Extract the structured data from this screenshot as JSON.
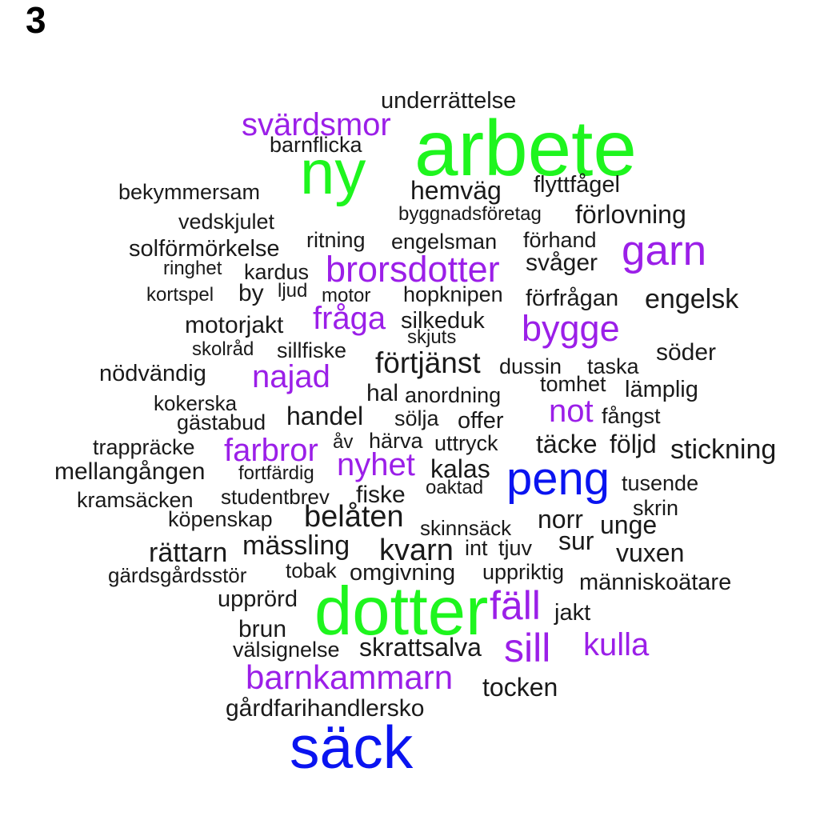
{
  "panel_label": "3",
  "colors": {
    "black": "#1a1a1a",
    "purple": "#9b1fe8",
    "green": "#1ef51e",
    "blue": "#0a14f0"
  },
  "words": [
    {
      "text": "underrättelse",
      "color": "black"
    },
    {
      "text": "svärdsmor",
      "color": "purple"
    },
    {
      "text": "arbete",
      "color": "green"
    },
    {
      "text": "barnflicka",
      "color": "black"
    },
    {
      "text": "ny",
      "color": "green"
    },
    {
      "text": "bekymmersam",
      "color": "black"
    },
    {
      "text": "hemväg",
      "color": "black"
    },
    {
      "text": "flyttfågel",
      "color": "black"
    },
    {
      "text": "byggnadsföretag",
      "color": "black"
    },
    {
      "text": "förlovning",
      "color": "black"
    },
    {
      "text": "vedskjulet",
      "color": "black"
    },
    {
      "text": "ritning",
      "color": "black"
    },
    {
      "text": "engelsman",
      "color": "black"
    },
    {
      "text": "förhand",
      "color": "black"
    },
    {
      "text": "garn",
      "color": "purple"
    },
    {
      "text": "solförmörkelse",
      "color": "black"
    },
    {
      "text": "svåger",
      "color": "black"
    },
    {
      "text": "ringhet",
      "color": "black"
    },
    {
      "text": "kardus",
      "color": "black"
    },
    {
      "text": "brorsdotter",
      "color": "purple"
    },
    {
      "text": "kortspel",
      "color": "black"
    },
    {
      "text": "by",
      "color": "black"
    },
    {
      "text": "ljud",
      "color": "black"
    },
    {
      "text": "motor",
      "color": "black"
    },
    {
      "text": "hopknipen",
      "color": "black"
    },
    {
      "text": "förfrågan",
      "color": "black"
    },
    {
      "text": "engelsk",
      "color": "black"
    },
    {
      "text": "motorjakt",
      "color": "black"
    },
    {
      "text": "fråga",
      "color": "purple"
    },
    {
      "text": "silkeduk",
      "color": "black"
    },
    {
      "text": "bygge",
      "color": "purple"
    },
    {
      "text": "skjuts",
      "color": "black"
    },
    {
      "text": "skolråd",
      "color": "black"
    },
    {
      "text": "sillfiske",
      "color": "black"
    },
    {
      "text": "söder",
      "color": "black"
    },
    {
      "text": "förtjänst",
      "color": "black"
    },
    {
      "text": "nödvändig",
      "color": "black"
    },
    {
      "text": "najad",
      "color": "purple"
    },
    {
      "text": "dussin",
      "color": "black"
    },
    {
      "text": "taska",
      "color": "black"
    },
    {
      "text": "tomhet",
      "color": "black"
    },
    {
      "text": "lämplig",
      "color": "black"
    },
    {
      "text": "kokerska",
      "color": "black"
    },
    {
      "text": "hal",
      "color": "black"
    },
    {
      "text": "anordning",
      "color": "black"
    },
    {
      "text": "not",
      "color": "purple"
    },
    {
      "text": "handel",
      "color": "black"
    },
    {
      "text": "sölja",
      "color": "black"
    },
    {
      "text": "offer",
      "color": "black"
    },
    {
      "text": "fångst",
      "color": "black"
    },
    {
      "text": "gästabud",
      "color": "black"
    },
    {
      "text": "trappräcke",
      "color": "black"
    },
    {
      "text": "farbror",
      "color": "purple"
    },
    {
      "text": "åv",
      "color": "black"
    },
    {
      "text": "härva",
      "color": "black"
    },
    {
      "text": "uttryck",
      "color": "black"
    },
    {
      "text": "täcke",
      "color": "black"
    },
    {
      "text": "följd",
      "color": "black"
    },
    {
      "text": "stickning",
      "color": "black"
    },
    {
      "text": "nyhet",
      "color": "purple"
    },
    {
      "text": "mellangången",
      "color": "black"
    },
    {
      "text": "kalas",
      "color": "black"
    },
    {
      "text": "fortfärdig",
      "color": "black"
    },
    {
      "text": "peng",
      "color": "blue"
    },
    {
      "text": "tusende",
      "color": "black"
    },
    {
      "text": "oaktad",
      "color": "black"
    },
    {
      "text": "kramsäcken",
      "color": "black"
    },
    {
      "text": "studentbrev",
      "color": "black"
    },
    {
      "text": "fiske",
      "color": "black"
    },
    {
      "text": "skrin",
      "color": "black"
    },
    {
      "text": "köpenskap",
      "color": "black"
    },
    {
      "text": "belåten",
      "color": "black"
    },
    {
      "text": "norr",
      "color": "black"
    },
    {
      "text": "unge",
      "color": "black"
    },
    {
      "text": "skinnsäck",
      "color": "black"
    },
    {
      "text": "sur",
      "color": "black"
    },
    {
      "text": "mässling",
      "color": "black"
    },
    {
      "text": "rättarn",
      "color": "black"
    },
    {
      "text": "kvarn",
      "color": "black"
    },
    {
      "text": "int",
      "color": "black"
    },
    {
      "text": "tjuv",
      "color": "black"
    },
    {
      "text": "vuxen",
      "color": "black"
    },
    {
      "text": "gärdsgårdsstör",
      "color": "black"
    },
    {
      "text": "tobak",
      "color": "black"
    },
    {
      "text": "omgivning",
      "color": "black"
    },
    {
      "text": "uppriktig",
      "color": "black"
    },
    {
      "text": "människoätare",
      "color": "black"
    },
    {
      "text": "upprörd",
      "color": "black"
    },
    {
      "text": "dotter",
      "color": "green"
    },
    {
      "text": "fäll",
      "color": "purple"
    },
    {
      "text": "jakt",
      "color": "black"
    },
    {
      "text": "brun",
      "color": "black"
    },
    {
      "text": "välsignelse",
      "color": "black"
    },
    {
      "text": "skrattsalva",
      "color": "black"
    },
    {
      "text": "sill",
      "color": "purple"
    },
    {
      "text": "kulla",
      "color": "purple"
    },
    {
      "text": "barnkammarn",
      "color": "purple"
    },
    {
      "text": "tocken",
      "color": "black"
    },
    {
      "text": "gårdfarihandlersko",
      "color": "black"
    },
    {
      "text": "säck",
      "color": "blue"
    }
  ]
}
